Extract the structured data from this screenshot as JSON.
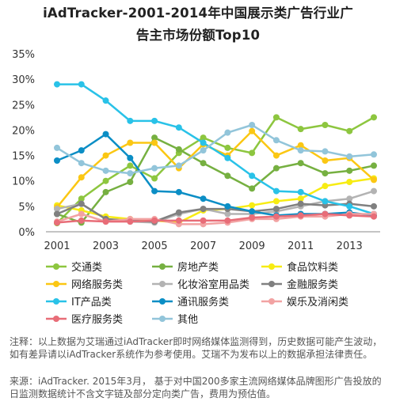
{
  "chart_data": {
    "type": "line",
    "title_line1": "iAdTracker-2001-2014年中国展示类广告行业广",
    "title_line2": "告主市场份额Top10",
    "x": [
      2001,
      2002,
      2003,
      2004,
      2005,
      2006,
      2007,
      2008,
      2009,
      2010,
      2011,
      2012,
      2013,
      2014
    ],
    "x_tick_labels": [
      "2001",
      "2003",
      "2005",
      "2007",
      "2009",
      "2011",
      "2013"
    ],
    "y_tick_labels": [
      "0%",
      "5%",
      "10%",
      "15%",
      "20%",
      "25%",
      "30%",
      "35%"
    ],
    "ylim": [
      0,
      35
    ],
    "grid": false,
    "legend_position": "bottom",
    "series": [
      {
        "name": "交通类",
        "color": "#8dc63f",
        "values": [
          1.7,
          6.5,
          10.0,
          13.0,
          10.5,
          15.5,
          18.5,
          16.5,
          15.5,
          22.5,
          20.2,
          21.0,
          19.8,
          22.5
        ]
      },
      {
        "name": "房地产类",
        "color": "#76b041",
        "values": [
          3.5,
          1.8,
          7.8,
          9.8,
          18.5,
          16.2,
          13.5,
          11.0,
          8.5,
          12.5,
          13.5,
          11.5,
          12.0,
          13.0
        ]
      },
      {
        "name": "食品饮料类",
        "color": "#f7ec13",
        "values": [
          5.2,
          4.2,
          3.0,
          2.5,
          2.2,
          1.8,
          4.2,
          4.5,
          5.2,
          6.0,
          6.5,
          9.0,
          9.8,
          10.5
        ]
      },
      {
        "name": "网络服务类",
        "color": "#fbc713",
        "values": [
          4.8,
          10.7,
          15.0,
          17.5,
          17.5,
          12.5,
          17.2,
          15.0,
          19.8,
          15.0,
          17.0,
          14.0,
          14.5,
          10.2
        ]
      },
      {
        "name": "化妆浴室用品类",
        "color": "#b3b3b3",
        "values": [
          4.5,
          5.5,
          2.5,
          2.0,
          1.8,
          3.5,
          4.5,
          3.5,
          3.5,
          4.0,
          5.0,
          6.0,
          6.5,
          8.0
        ]
      },
      {
        "name": "金融服务类",
        "color": "#808080",
        "values": [
          3.5,
          5.5,
          2.5,
          2.2,
          2.0,
          3.8,
          4.5,
          4.5,
          4.0,
          4.5,
          5.5,
          5.2,
          5.5,
          5.0
        ]
      },
      {
        "name": "IT产品类",
        "color": "#29c2e8",
        "values": [
          29.0,
          29.0,
          25.8,
          21.8,
          21.8,
          20.5,
          17.5,
          14.5,
          11.0,
          8.0,
          7.8,
          6.0,
          5.0,
          3.5
        ]
      },
      {
        "name": "通讯服务类",
        "color": "#0b8ec5",
        "values": [
          14.0,
          16.0,
          19.2,
          14.5,
          8.0,
          7.8,
          6.5,
          5.0,
          4.0,
          3.2,
          3.5,
          3.5,
          3.8,
          3.2
        ]
      },
      {
        "name": "娱乐及消闲类",
        "color": "#f2a3a3",
        "values": [
          2.0,
          3.5,
          2.0,
          2.5,
          2.5,
          1.5,
          1.5,
          1.8,
          2.5,
          2.5,
          3.0,
          3.0,
          3.5,
          3.5
        ]
      },
      {
        "name": "医疗服务类",
        "color": "#e86d78",
        "values": [
          1.8,
          2.2,
          2.0,
          2.0,
          2.2,
          2.2,
          2.2,
          2.2,
          2.8,
          3.0,
          3.2,
          3.5,
          3.2,
          3.0
        ]
      },
      {
        "name": "其他",
        "color": "#92c5da",
        "values": [
          16.5,
          13.5,
          12.0,
          11.5,
          12.5,
          13.0,
          16.0,
          19.5,
          21.0,
          18.0,
          16.0,
          15.8,
          14.8,
          15.2
        ]
      }
    ]
  },
  "notes": {
    "line1": "注释：以上数据为艾瑞通过iAdTracker即时网络媒体监测得到，历史数据可能产生波动，如有差异请以iAdTracker系统作为参考使用。艾瑞不为发布以上的数据承担法律责任。",
    "line2": "来源：iAdTracker. 2015年3月， 基于对中国200多家主流网络媒体品牌图形广告投放的日监测数据统计不含文字链及部分定向类广告，费用为预估值。"
  }
}
